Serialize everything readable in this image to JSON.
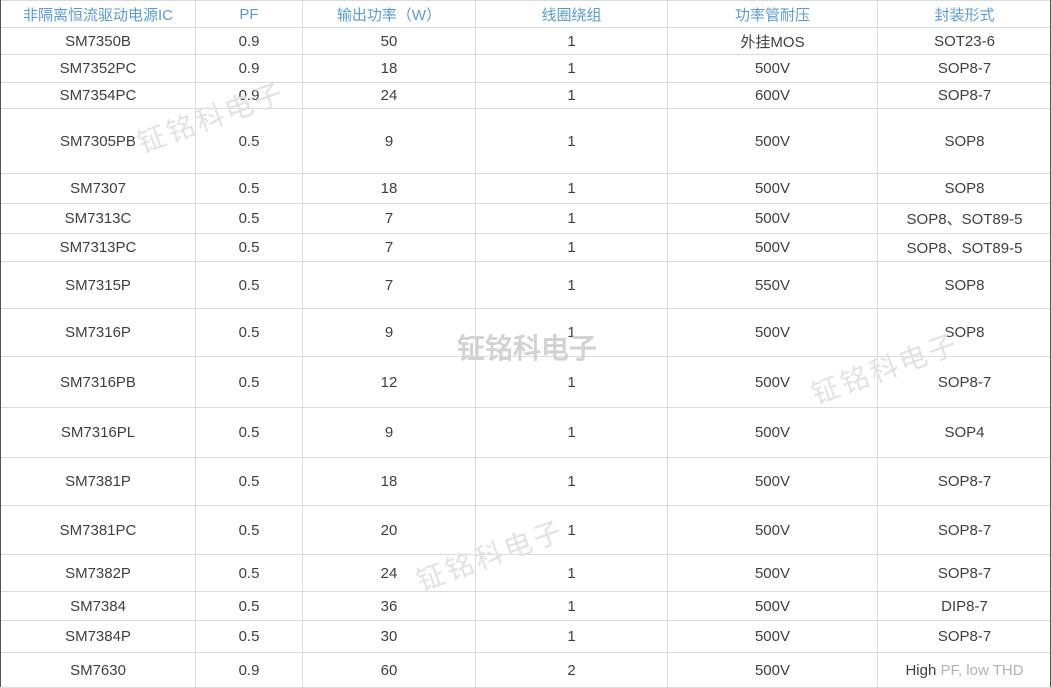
{
  "watermark": {
    "text": "钲铭科电子"
  },
  "colors": {
    "header_text": "#5b9bd5",
    "body_text": "#3f3f3f",
    "border": "#dbdbdb",
    "watermark_light": "#e2e2e2",
    "watermark_bold": "#d2d2d2",
    "faded_text": "#b3b3b3"
  },
  "table": {
    "headers": [
      "非隔离恒流驱动电源IC",
      "PF",
      "输出功率（W）",
      "线圈绕组",
      "功率管耐压",
      "封装形式"
    ],
    "rows": [
      {
        "ic": "SM7350B",
        "pf": "0.9",
        "power": "50",
        "coil": "1",
        "voltage": "外挂MOS",
        "package": "SOT23-6"
      },
      {
        "ic": "SM7352PC",
        "pf": "0.9",
        "power": "18",
        "coil": "1",
        "voltage": "500V",
        "package": "SOP8-7"
      },
      {
        "ic": "SM7354PC",
        "pf": "0.9",
        "power": "24",
        "coil": "1",
        "voltage": "600V",
        "package": "SOP8-7"
      },
      {
        "ic": "SM7305PB",
        "pf": "0.5",
        "power": "9",
        "coil": "1",
        "voltage": "500V",
        "package": "SOP8"
      },
      {
        "ic": "SM7307",
        "pf": "0.5",
        "power": "18",
        "coil": "1",
        "voltage": "500V",
        "package": "SOP8"
      },
      {
        "ic": "SM7313C",
        "pf": "0.5",
        "power": "7",
        "coil": "1",
        "voltage": "500V",
        "package": "SOP8、SOT89-5"
      },
      {
        "ic": "SM7313PC",
        "pf": "0.5",
        "power": "7",
        "coil": "1",
        "voltage": "500V",
        "package": "SOP8、SOT89-5"
      },
      {
        "ic": "SM7315P",
        "pf": "0.5",
        "power": "7",
        "coil": "1",
        "voltage": "550V",
        "package": "SOP8"
      },
      {
        "ic": "SM7316P",
        "pf": "0.5",
        "power": "9",
        "coil": "1",
        "voltage": "500V",
        "package": "SOP8"
      },
      {
        "ic": "SM7316PB",
        "pf": "0.5",
        "power": "12",
        "coil": "1",
        "voltage": "500V",
        "package": "SOP8-7"
      },
      {
        "ic": "SM7316PL",
        "pf": "0.5",
        "power": "9",
        "coil": "1",
        "voltage": "500V",
        "package": "SOP4"
      },
      {
        "ic": "SM7381P",
        "pf": "0.5",
        "power": "18",
        "coil": "1",
        "voltage": "500V",
        "package": "SOP8-7"
      },
      {
        "ic": "SM7381PC",
        "pf": "0.5",
        "power": "20",
        "coil": "1",
        "voltage": "500V",
        "package": "SOP8-7"
      },
      {
        "ic": "SM7382P",
        "pf": "0.5",
        "power": "24",
        "coil": "1",
        "voltage": "500V",
        "package": "SOP8-7"
      },
      {
        "ic": "SM7384",
        "pf": "0.5",
        "power": "36",
        "coil": "1",
        "voltage": "500V",
        "package": "DIP8-7"
      },
      {
        "ic": "SM7384P",
        "pf": "0.5",
        "power": "30",
        "coil": "1",
        "voltage": "500V",
        "package": "SOP8-7"
      },
      {
        "ic": "SM7630",
        "pf": "0.9",
        "power": "60",
        "coil": "2",
        "voltage": "500V",
        "package": "High PF, low THD",
        "package_main": "High",
        "package_faded": "PF, low THD"
      }
    ]
  }
}
